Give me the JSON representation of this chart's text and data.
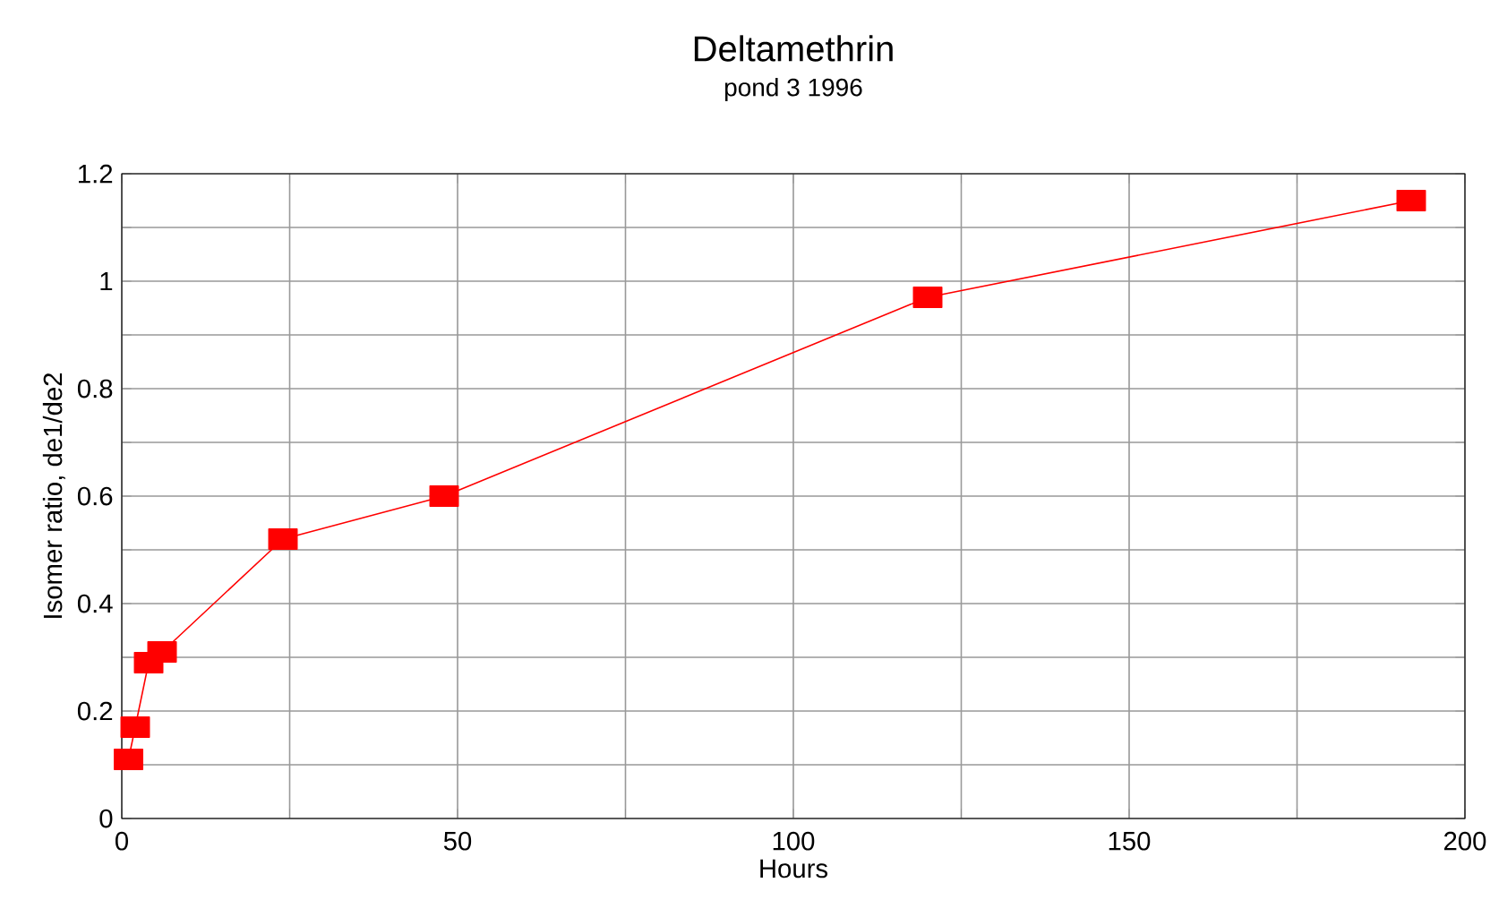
{
  "chart_data": {
    "type": "line",
    "title": "Deltamethrin",
    "subtitle": "pond 3 1996",
    "xlabel": "Hours",
    "ylabel": "Isomer ratio, de1/de2",
    "x": [
      1,
      2,
      4,
      6,
      24,
      48,
      120,
      192
    ],
    "series": [
      {
        "color": "#ff0000",
        "values": [
          0.11,
          0.17,
          0.29,
          0.31,
          0.52,
          0.6,
          0.97,
          1.15
        ]
      }
    ],
    "xlim": [
      0,
      200
    ],
    "ylim": [
      0,
      1.2
    ],
    "xticks": [
      0,
      {
        "value": 25,
        "label": null
      },
      50,
      {
        "value": 75,
        "label": null
      },
      100,
      {
        "value": 125,
        "label": null
      },
      150,
      {
        "value": 175,
        "label": null
      },
      200
    ],
    "yticks": [
      0,
      {
        "value": 0.1,
        "label": null
      },
      0.2,
      {
        "value": 0.3,
        "label": null
      },
      0.4,
      {
        "value": 0.5,
        "label": null
      },
      0.6,
      {
        "value": 0.7,
        "label": null
      },
      0.8,
      {
        "value": 0.9,
        "label": null
      },
      1,
      {
        "value": 1.1,
        "label": null
      },
      1.2
    ],
    "grid": true,
    "marker": "square",
    "line_style": "solid"
  }
}
